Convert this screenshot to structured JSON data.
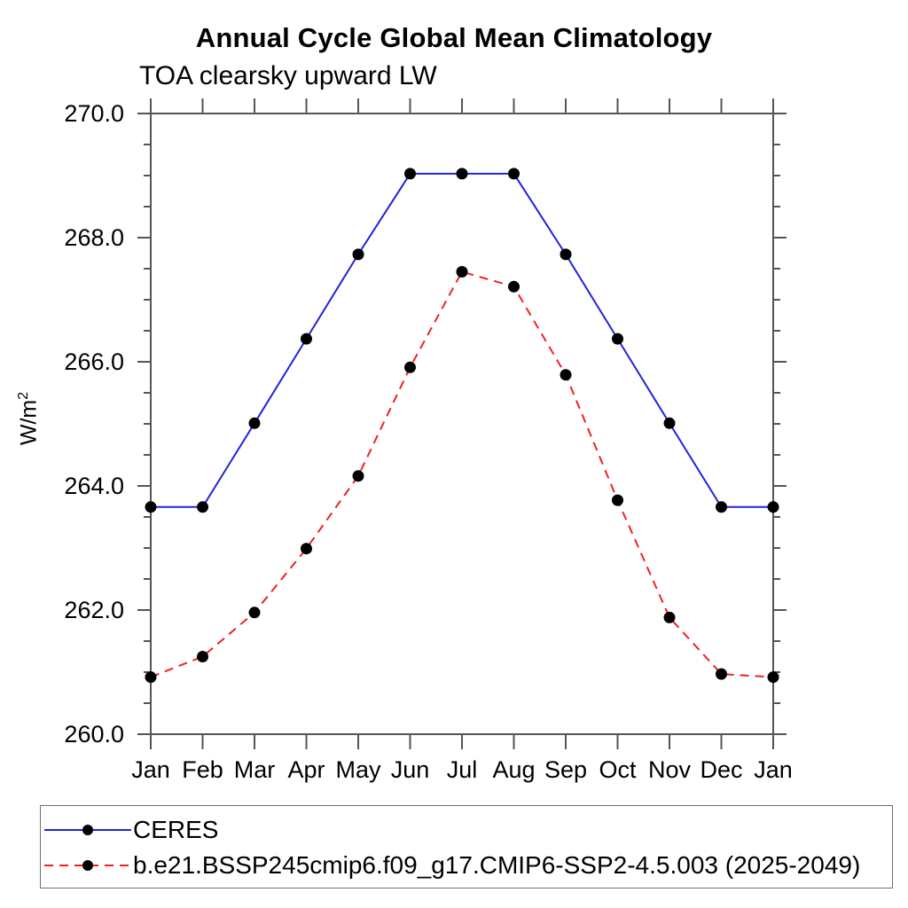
{
  "chart_data": {
    "type": "line",
    "title": "Annual Cycle Global Mean Climatology",
    "subtitle": "TOA clearsky upward LW",
    "ylabel": "W/m²",
    "ylabel_parts": {
      "base": "W/m",
      "exponent": "2"
    },
    "xlabel": "",
    "categories": [
      "Jan",
      "Feb",
      "Mar",
      "Apr",
      "May",
      "Jun",
      "Jul",
      "Aug",
      "Sep",
      "Oct",
      "Nov",
      "Dec",
      "Jan"
    ],
    "ylim": [
      260.0,
      270.0
    ],
    "ytick_labels": [
      "260.0",
      "262.0",
      "264.0",
      "266.0",
      "268.0",
      "270.0"
    ],
    "ytick_major_step": 2.0,
    "ytick_minor_step": 0.5,
    "grid": false,
    "legend_position": "bottom-left-box",
    "axis_color": "#555555",
    "marker_color": "#000000",
    "series": [
      {
        "name": "CERES",
        "color": "#2222dd",
        "line_style": "solid",
        "marker": "filled-circle",
        "values": [
          263.66,
          263.66,
          265.01,
          266.37,
          267.73,
          269.03,
          269.03,
          269.03,
          267.73,
          266.37,
          265.01,
          263.66,
          263.66
        ]
      },
      {
        "name": "b.e21.BSSP245cmip6.f09_g17.CMIP6-SSP2-4.5.003 (2025-2049)",
        "color": "#f02020",
        "line_style": "dashed",
        "marker": "filled-circle",
        "values": [
          260.92,
          261.25,
          261.96,
          262.99,
          264.16,
          265.91,
          267.45,
          267.21,
          265.79,
          263.77,
          261.88,
          260.97,
          260.92
        ]
      }
    ]
  }
}
